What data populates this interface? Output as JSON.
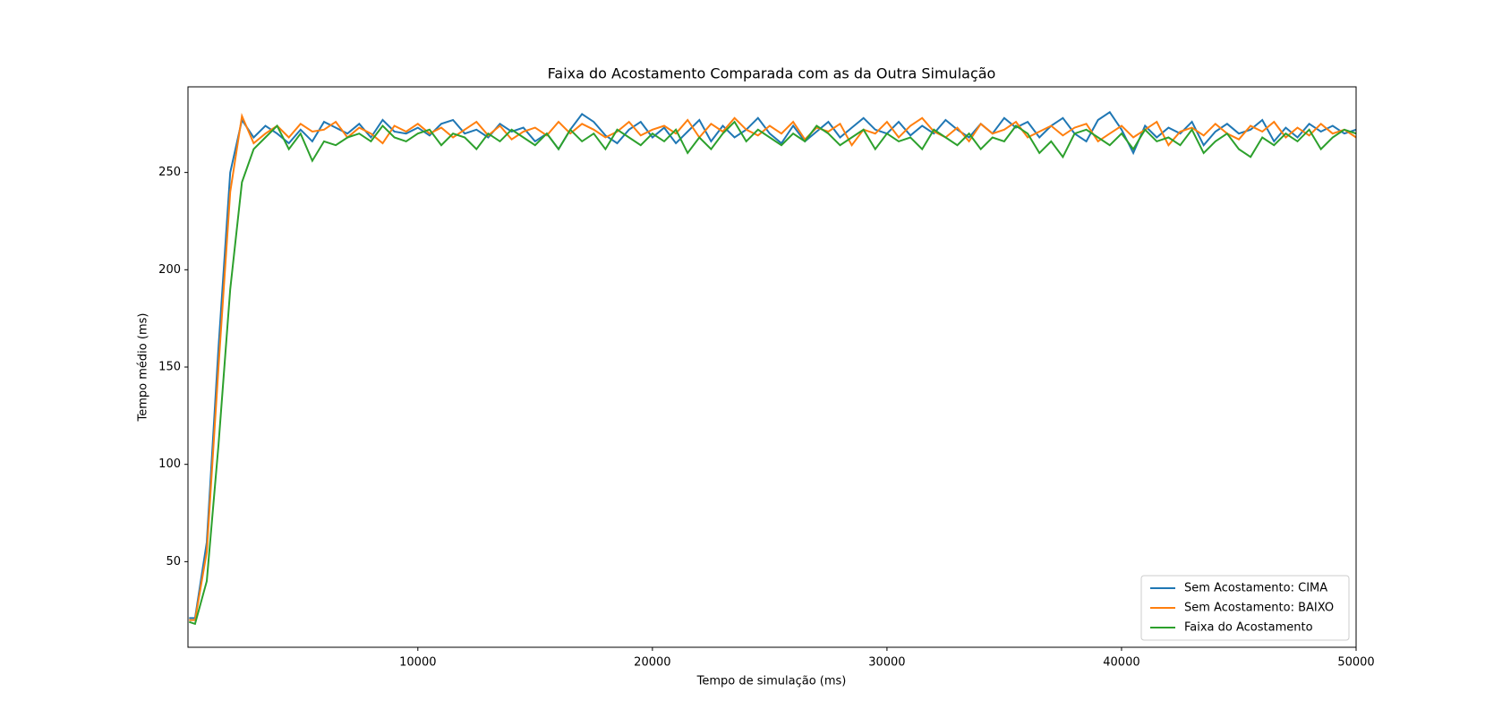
{
  "chart_data": {
    "type": "line",
    "title": "Faixa do Acostamento Comparada com as da Outra Simulação",
    "x_label": "Tempo de simulação (ms)",
    "y_label": "Tempo médio (ms)",
    "x": [
      250,
      500,
      1000,
      1500,
      2000,
      2500,
      3000,
      3500,
      4000,
      4500,
      5000,
      5500,
      6000,
      6500,
      7000,
      7500,
      8000,
      8500,
      9000,
      9500,
      10000,
      10500,
      11000,
      11500,
      12000,
      12500,
      13000,
      13500,
      14000,
      14500,
      15000,
      15500,
      16000,
      16500,
      17000,
      17500,
      18000,
      18500,
      19000,
      19500,
      20000,
      20500,
      21000,
      21500,
      22000,
      22500,
      23000,
      23500,
      24000,
      24500,
      25000,
      25500,
      26000,
      26500,
      27000,
      27500,
      28000,
      28500,
      29000,
      29500,
      30000,
      30500,
      31000,
      31500,
      32000,
      32500,
      33000,
      33500,
      34000,
      34500,
      35000,
      35500,
      36000,
      36500,
      37000,
      37500,
      38000,
      38500,
      39000,
      39500,
      40000,
      40500,
      41000,
      41500,
      42000,
      42500,
      43000,
      43500,
      44000,
      44500,
      45000,
      45500,
      46000,
      46500,
      47000,
      47500,
      48000,
      48500,
      49000,
      49500,
      50000
    ],
    "series": [
      {
        "name": "Sem Acostamento: CIMA",
        "color": "#1f77b4",
        "values": [
          21,
          21,
          60,
          160,
          250,
          277,
          268,
          274,
          270,
          265,
          272,
          266,
          276,
          273,
          270,
          275,
          268,
          277,
          271,
          270,
          273,
          269,
          275,
          277,
          270,
          272,
          268,
          275,
          271,
          273,
          266,
          270,
          262,
          272,
          280,
          276,
          269,
          265,
          272,
          276,
          268,
          273,
          265,
          271,
          277,
          266,
          274,
          268,
          272,
          278,
          270,
          265,
          274,
          266,
          271,
          276,
          268,
          273,
          278,
          272,
          270,
          276,
          269,
          274,
          270,
          277,
          272,
          268,
          275,
          270,
          278,
          273,
          276,
          268,
          274,
          278,
          270,
          266,
          277,
          281,
          272,
          260,
          274,
          268,
          273,
          270,
          276,
          264,
          271,
          275,
          270,
          272,
          277,
          266,
          273,
          268,
          275,
          271,
          274,
          270,
          272
        ]
      },
      {
        "name": "Sem Acostamento: BAIXO",
        "color": "#ff7f0e",
        "values": [
          20,
          20,
          55,
          150,
          240,
          279,
          265,
          270,
          274,
          268,
          275,
          271,
          272,
          276,
          268,
          273,
          270,
          265,
          274,
          271,
          275,
          270,
          273,
          268,
          272,
          276,
          269,
          274,
          267,
          271,
          273,
          269,
          276,
          270,
          275,
          272,
          268,
          271,
          276,
          269,
          272,
          274,
          270,
          277,
          268,
          275,
          271,
          278,
          272,
          269,
          274,
          270,
          276,
          267,
          273,
          271,
          275,
          264,
          272,
          270,
          276,
          268,
          274,
          278,
          271,
          268,
          273,
          266,
          275,
          270,
          272,
          276,
          268,
          271,
          274,
          269,
          273,
          275,
          266,
          270,
          274,
          268,
          272,
          276,
          264,
          271,
          273,
          269,
          275,
          270,
          267,
          274,
          271,
          276,
          268,
          273,
          269,
          275,
          270,
          272,
          268
        ]
      },
      {
        "name": "Faixa do Acostamento",
        "color": "#2ca02c",
        "values": [
          19,
          18,
          40,
          110,
          190,
          245,
          262,
          268,
          274,
          262,
          270,
          256,
          266,
          264,
          268,
          270,
          266,
          274,
          268,
          266,
          270,
          272,
          264,
          270,
          268,
          262,
          270,
          266,
          272,
          268,
          264,
          270,
          262,
          272,
          266,
          270,
          262,
          272,
          268,
          264,
          270,
          266,
          272,
          260,
          268,
          262,
          270,
          276,
          266,
          272,
          268,
          264,
          270,
          266,
          274,
          270,
          264,
          268,
          272,
          262,
          270,
          266,
          268,
          262,
          272,
          268,
          264,
          270,
          262,
          268,
          266,
          274,
          270,
          260,
          266,
          258,
          270,
          272,
          268,
          264,
          270,
          262,
          272,
          266,
          268,
          264,
          272,
          260,
          266,
          270,
          262,
          258,
          268,
          264,
          270,
          266,
          272,
          262,
          268,
          272,
          270
        ]
      }
    ],
    "xlim": [
      200,
      50000
    ],
    "ylim": [
      6,
      294
    ],
    "xticks": [
      10000,
      20000,
      30000,
      40000,
      50000
    ],
    "yticks": [
      50,
      100,
      150,
      200,
      250
    ],
    "legend": "lower right"
  }
}
